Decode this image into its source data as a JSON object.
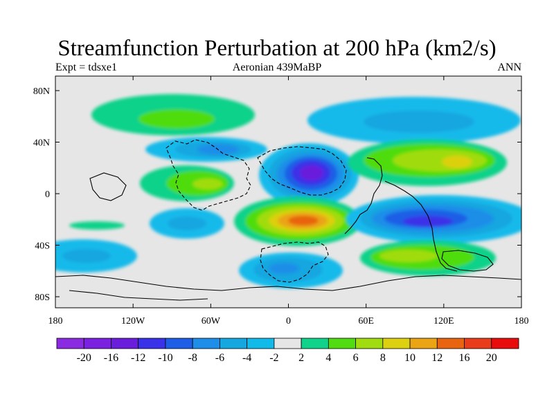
{
  "title": "Streamfunction Perturbation at 200 hPa (km2/s)",
  "left_label": "Expt = tdsxe1",
  "center_label": "Aeronian 439MaBP",
  "right_label": "ANN",
  "colors": {
    "ocean_background": "#e6e6e6",
    "coastline": "#000000",
    "frame": "#000000"
  },
  "x_ticks": [
    "180",
    "120W",
    "60W",
    "0",
    "60E",
    "120E",
    "180"
  ],
  "y_ticks": [
    "80N",
    "40N",
    "0",
    "40S",
    "80S"
  ],
  "colorbar": {
    "labels": [
      "-20",
      "-16",
      "-12",
      "-10",
      "-8",
      "-6",
      "-4",
      "-2",
      "2",
      "4",
      "6",
      "8",
      "10",
      "12",
      "16",
      "20"
    ],
    "colors": [
      "#8a2be2",
      "#7a22e0",
      "#6a1edc",
      "#3a32e8",
      "#1e5ee6",
      "#1e8ee8",
      "#16a6e0",
      "#12baea",
      "#e6e6e6",
      "#10d28a",
      "#50dc10",
      "#a0dc10",
      "#dcd010",
      "#eaa414",
      "#e86410",
      "#e83c1a",
      "#e80c0c"
    ]
  }
}
